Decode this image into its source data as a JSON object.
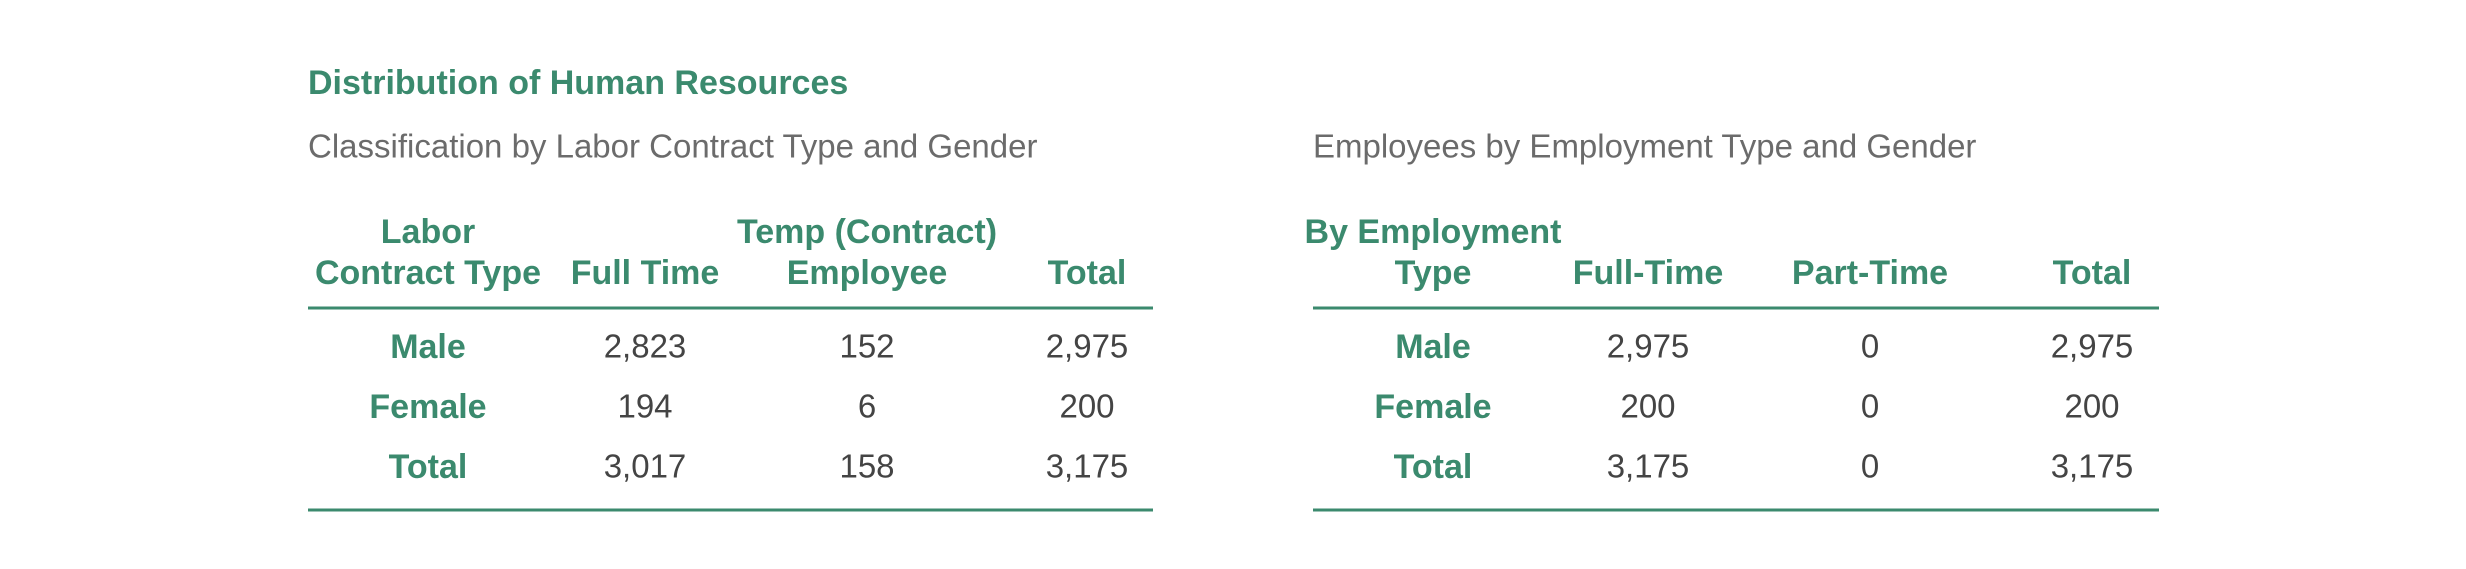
{
  "title": "Distribution of Human Resources",
  "tables": [
    {
      "subtitle": "Classification by Labor Contract Type and Gender",
      "columns": [
        [
          "Labor",
          "Contract Type"
        ],
        [
          "Full Time"
        ],
        [
          "Temp (Contract)",
          "Employee"
        ],
        [
          "Total"
        ]
      ],
      "rows": [
        [
          "Male",
          "2,823",
          "152",
          "2,975"
        ],
        [
          "Female",
          "194",
          "6",
          "200"
        ],
        [
          "Total",
          "3,017",
          "158",
          "3,175"
        ]
      ]
    },
    {
      "subtitle": "Employees by Employment Type and Gender",
      "columns": [
        [
          "By Employment",
          "Type"
        ],
        [
          "Full-Time"
        ],
        [
          "Part-Time"
        ],
        [
          "Total"
        ]
      ],
      "rows": [
        [
          "Male",
          "2,975",
          "0",
          "2,975"
        ],
        [
          "Female",
          "200",
          "0",
          "200"
        ],
        [
          "Total",
          "3,175",
          "0",
          "3,175"
        ]
      ]
    }
  ]
}
